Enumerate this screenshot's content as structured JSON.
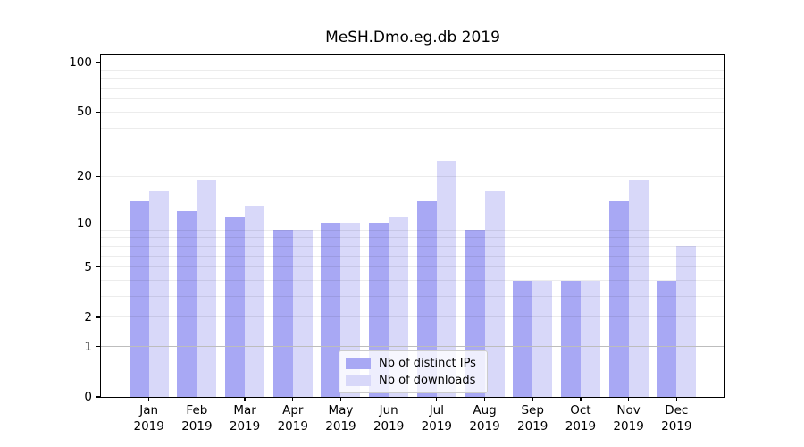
{
  "chart_data": {
    "type": "bar",
    "title": "MeSH.Dmo.eg.db 2019",
    "categories": [
      "Jan",
      "Feb",
      "Mar",
      "Apr",
      "May",
      "Jun",
      "Jul",
      "Aug",
      "Sep",
      "Oct",
      "Nov",
      "Dec"
    ],
    "x_year_label": "2019",
    "series": [
      {
        "name": "Nb of distinct IPs",
        "color": "#a8a8f4",
        "values": [
          14,
          12,
          11,
          9,
          10,
          10,
          14,
          9,
          4,
          4,
          14,
          4
        ]
      },
      {
        "name": "Nb of downloads",
        "color": "#d8d8f9",
        "values": [
          16,
          19,
          13,
          9,
          10,
          11,
          25,
          16,
          4,
          4,
          19,
          7
        ]
      }
    ],
    "xlabel": "",
    "ylabel": "",
    "yscale": "log1p",
    "ylim": [
      0,
      112
    ],
    "y_tick_values": [
      0,
      1,
      2,
      5,
      10,
      20,
      50,
      100
    ],
    "y_major_gridlines": [
      1,
      10,
      100
    ],
    "y_minor_gridlines": [
      2,
      3,
      4,
      5,
      6,
      7,
      8,
      9,
      20,
      30,
      40,
      50,
      60,
      70,
      80,
      90
    ],
    "grid": true,
    "legend_position": "lower center"
  }
}
